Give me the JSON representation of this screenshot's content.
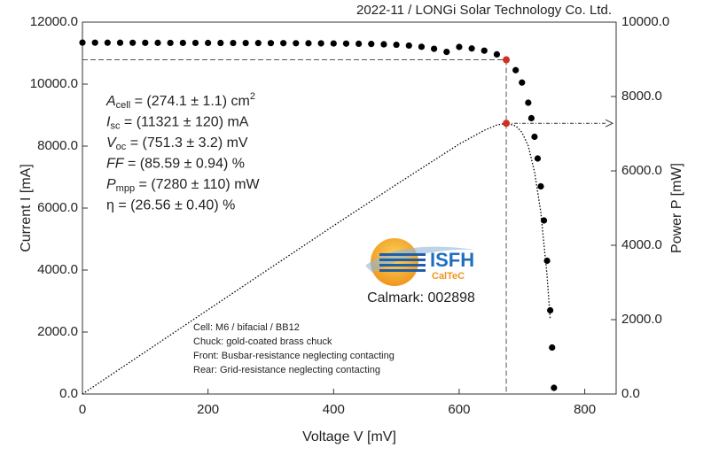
{
  "chart_data": {
    "type": "scatter",
    "title": "2022-11 / LONGi Solar Technology Co. Ltd.",
    "xlabel": "Voltage V [mV]",
    "ylabel": "Current I [mA]",
    "y2label": "Power P [mW]",
    "xlim": [
      0,
      850
    ],
    "ylim": [
      0,
      12000
    ],
    "y2lim": [
      0,
      10000
    ],
    "xticks": [
      0,
      200,
      400,
      600,
      800
    ],
    "yticks": [
      {
        "value": 0,
        "label": "0.0"
      },
      {
        "value": 2000,
        "label": "2000.0"
      },
      {
        "value": 4000,
        "label": "4000.0"
      },
      {
        "value": 6000,
        "label": "6000.0"
      },
      {
        "value": 8000,
        "label": "8000.0"
      },
      {
        "value": 10000,
        "label": "10000.0"
      },
      {
        "value": 12000,
        "label": "12000.0"
      }
    ],
    "y2ticks": [
      {
        "value": 0,
        "label": "0.0"
      },
      {
        "value": 2000,
        "label": "2000.0"
      },
      {
        "value": 4000,
        "label": "4000.0"
      },
      {
        "value": 6000,
        "label": "6000.0"
      },
      {
        "value": 8000,
        "label": "8000.0"
      },
      {
        "value": 10000,
        "label": "10000.0"
      }
    ],
    "series": [
      {
        "type": "scatter",
        "color": "#000000",
        "x": [
          0,
          20,
          40,
          60,
          80,
          100,
          120,
          140,
          160,
          180,
          200,
          220,
          240,
          260,
          280,
          300,
          320,
          340,
          360,
          380,
          400,
          420,
          440,
          460,
          480,
          500,
          520,
          540,
          560,
          580,
          600,
          620,
          640,
          660,
          675,
          690,
          700,
          710,
          715,
          720,
          725,
          730,
          735,
          740,
          745,
          748,
          751
        ],
        "values": [
          11340,
          11338,
          11336,
          11335,
          11334,
          11333,
          11332,
          11331,
          11330,
          11330,
          11329,
          11328,
          11327,
          11326,
          11325,
          11323,
          11322,
          11320,
          11318,
          11315,
          11312,
          11308,
          11303,
          11296,
          11285,
          11270,
          11245,
          11205,
          11140,
          11040,
          11200,
          11150,
          11080,
          10960,
          10785,
          10450,
          10050,
          9400,
          8900,
          8300,
          7600,
          6700,
          5600,
          4300,
          2700,
          1500,
          200
        ]
      },
      {
        "type": "line",
        "axis": "y2",
        "color": "#000000",
        "x": [
          0,
          100,
          200,
          300,
          400,
          500,
          600,
          640,
          660,
          675,
          690,
          700,
          710,
          720,
          730,
          740,
          745
        ],
        "values": [
          0,
          1133,
          2266,
          3397,
          4525,
          5635,
          6720,
          7091,
          7234,
          7280,
          7211,
          7035,
          6674,
          5976,
          4891,
          3182,
          2011
        ]
      }
    ],
    "mpp": {
      "x": 675,
      "current": 10785,
      "power": 7280,
      "color": "#d03020"
    },
    "annotations": [
      {
        "main": "A",
        "sub": "cell",
        "rest": " = (274.1 ± 1.1) cm",
        "sup": "2",
        "italic": true
      },
      {
        "main": "I",
        "sub": "sc",
        "rest": " = (11321 ± 120) mA",
        "italic": true
      },
      {
        "main": "V",
        "sub": "oc",
        "rest": " = (751.3 ± 3.2) mV",
        "italic": true
      },
      {
        "main": "FF",
        "rest": " = (85.59 ± 0.94) %",
        "italic": true
      },
      {
        "main": "P",
        "sub": "mpp",
        "rest": " = (7280 ± 110) mW",
        "italic": true
      },
      {
        "main": "η",
        "rest": " = (26.56 ± 0.40) %",
        "italic": false
      }
    ],
    "cell_info": [
      "Cell: M6 / bifacial / BB12",
      "Chuck: gold-coated brass chuck",
      "Front: Busbar-resistance neglecting contacting",
      "Rear: Grid-resistance neglecting contacting"
    ],
    "logo": {
      "text": "ISFH",
      "subtext": "CalTeC"
    },
    "calmark": "Calmark: 002898"
  }
}
